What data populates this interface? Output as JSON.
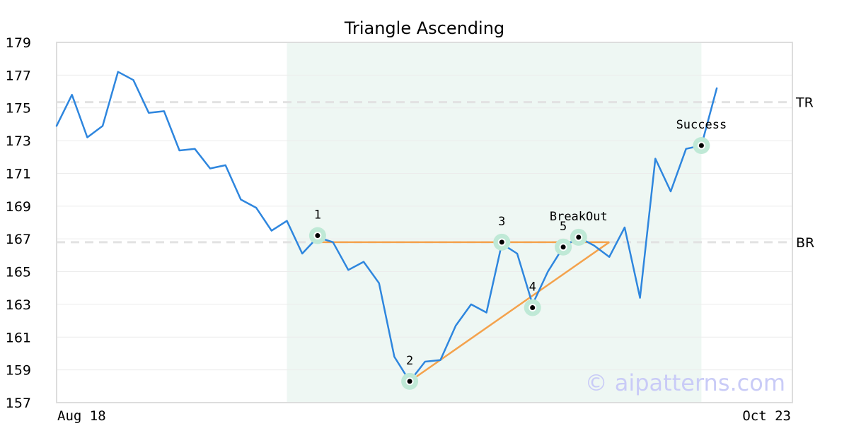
{
  "chart_data": {
    "type": "line",
    "title": "Triangle Ascending",
    "ylim": [
      157,
      179
    ],
    "yticks": [
      "157",
      "159",
      "161",
      "163",
      "165",
      "167",
      "169",
      "171",
      "173",
      "175",
      "177",
      "179"
    ],
    "x_start_label": "Aug 18",
    "x_end_label": "Oct 23",
    "grid": "horizontal",
    "series": [
      {
        "color": "#2e86de",
        "values": [
          173.9,
          175.8,
          173.2,
          173.9,
          177.2,
          176.7,
          174.7,
          174.8,
          172.4,
          172.5,
          171.3,
          171.5,
          169.4,
          168.9,
          167.5,
          168.1,
          166.1,
          167.1,
          166.8,
          165.1,
          165.6,
          164.3,
          159.8,
          158.3,
          159.5,
          159.6,
          161.7,
          163.0,
          162.5,
          166.7,
          166.1,
          163.0,
          165.0,
          166.5,
          167.1,
          166.6,
          165.9,
          167.7,
          163.4,
          171.9,
          169.9,
          172.5,
          172.7,
          176.2
        ]
      }
    ],
    "highlight_region": {
      "from_index": 15,
      "to_index": 42,
      "color": "#eef7f3"
    },
    "levels": [
      {
        "label": "TR",
        "value": 175.35,
        "color": "#e2e2e2"
      },
      {
        "label": "BR",
        "value": 166.8,
        "color": "#e2e2e2"
      }
    ],
    "pattern_lines": [
      {
        "from": [
          17,
          166.8
        ],
        "to": [
          36,
          166.8
        ],
        "color": "#f4a24c"
      },
      {
        "from": [
          23,
          158.3
        ],
        "to": [
          36,
          166.8
        ],
        "color": "#f4a24c"
      }
    ],
    "pattern_points": [
      {
        "label": "1",
        "index": 17,
        "value": 167.2
      },
      {
        "label": "2",
        "index": 23,
        "value": 158.3
      },
      {
        "label": "3",
        "index": 29,
        "value": 166.8
      },
      {
        "label": "4",
        "index": 31,
        "value": 162.8
      },
      {
        "label": "5",
        "index": 33,
        "value": 166.5
      },
      {
        "label": "BreakOut",
        "index": 34,
        "value": 167.1
      },
      {
        "label": "Success",
        "index": 42,
        "value": 172.7
      }
    ],
    "marker_ring_color": "#bfe9d6"
  },
  "watermark": "© aipatterns.com"
}
